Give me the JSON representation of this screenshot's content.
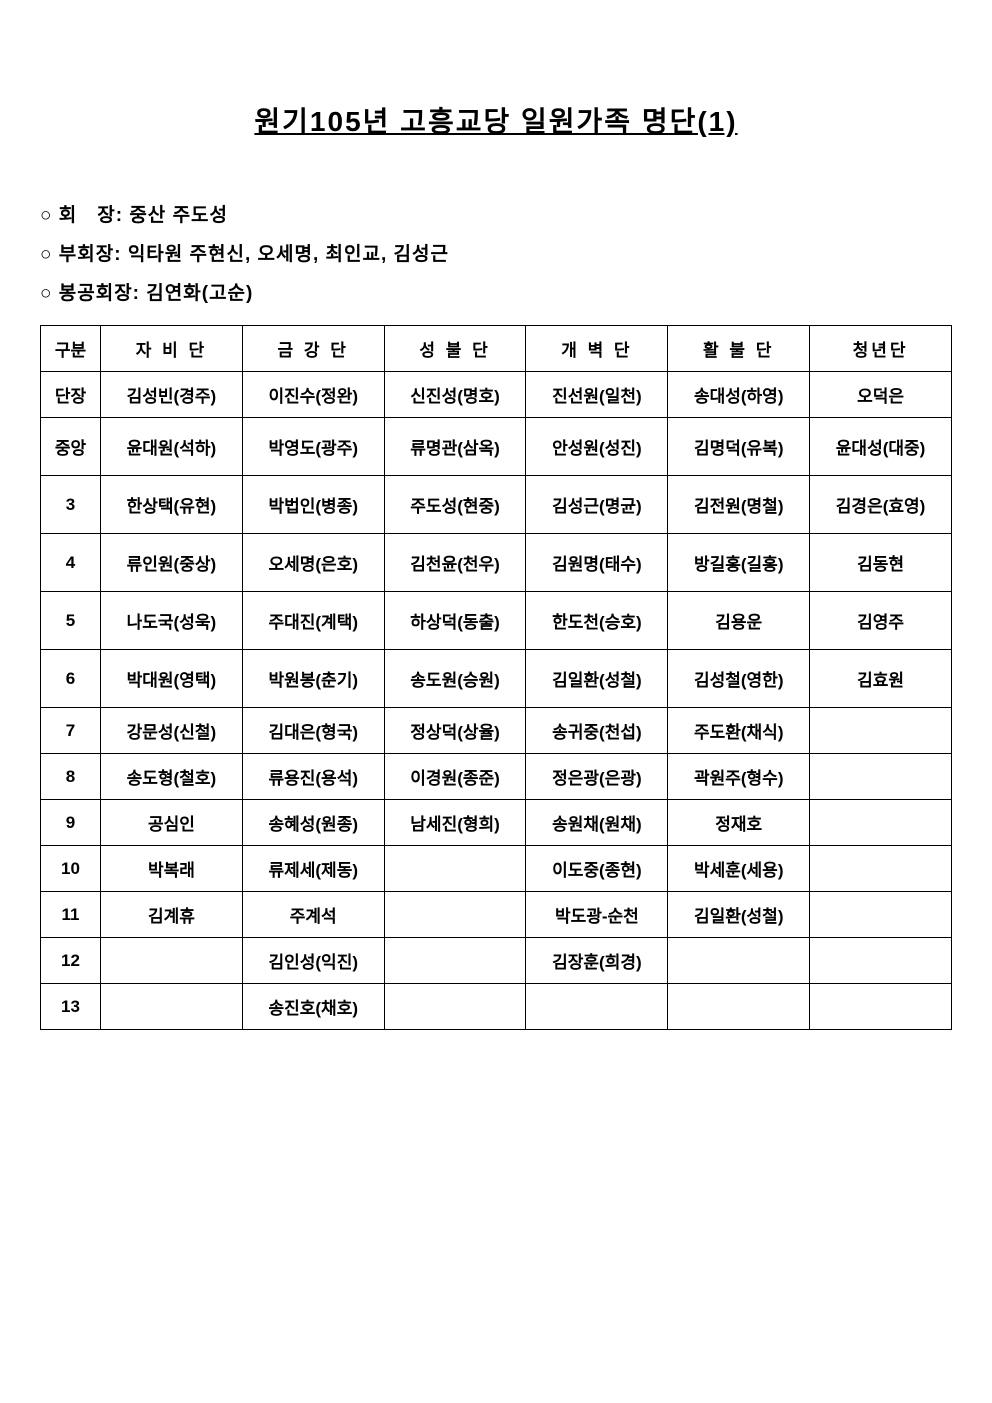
{
  "title": "원기105년 고흥교당 일원가족 명단(1)",
  "info": {
    "chairman": {
      "label": "○ 회　장:",
      "value": "중산 주도성"
    },
    "vice_chairman": {
      "label": "○ 부회장:",
      "value": "익타원 주현신,  오세명,  최인교,  김성근"
    },
    "bonggong_chairman": {
      "label": "○ 봉공회장:",
      "value": "김연화(고순)"
    }
  },
  "table": {
    "columns": [
      "구분",
      "자 비 단",
      "금 강 단",
      "성 불 단",
      "개 벽 단",
      "활 불 단",
      "청년단"
    ],
    "column_classes": [
      "col-gubun",
      "col-data",
      "col-data",
      "col-data",
      "col-data",
      "col-data",
      "col-data"
    ],
    "rows": [
      {
        "label": "단장",
        "tall": false,
        "cells": [
          "김성빈(경주)",
          "이진수(정완)",
          "신진성(명호)",
          "진선원(일천)",
          "송대성(하영)",
          "오덕은"
        ]
      },
      {
        "label": "중앙",
        "tall": true,
        "cells": [
          "윤대원(석하)",
          "박영도(광주)",
          "류명관(삼옥)",
          "안성원(성진)",
          "김명덕(유복)",
          "윤대성(대중)"
        ]
      },
      {
        "label": "3",
        "tall": true,
        "cells": [
          "한상택(유현)",
          "박법인(병종)",
          "주도성(현중)",
          "김성근(명균)",
          "김전원(명철)",
          "김경은(효영)"
        ]
      },
      {
        "label": "4",
        "tall": true,
        "cells": [
          "류인원(중상)",
          "오세명(은호)",
          "김천윤(천우)",
          "김원명(태수)",
          "방길홍(길홍)",
          "김동현"
        ]
      },
      {
        "label": "5",
        "tall": true,
        "cells": [
          "나도국(성욱)",
          "주대진(계택)",
          "하상덕(동출)",
          "한도천(승호)",
          "김용운",
          "김영주"
        ]
      },
      {
        "label": "6",
        "tall": true,
        "cells": [
          "박대원(영택)",
          "박원봉(춘기)",
          "송도원(승원)",
          "김일환(성철)",
          "김성철(영한)",
          "김효원"
        ]
      },
      {
        "label": "7",
        "tall": false,
        "cells": [
          "강문성(신철)",
          "김대은(형국)",
          "정상덕(상율)",
          "송귀중(천섭)",
          "주도환(채식)",
          ""
        ]
      },
      {
        "label": "8",
        "tall": false,
        "cells": [
          "송도형(철호)",
          "류용진(용석)",
          "이경원(종준)",
          "정은광(은광)",
          "곽원주(형수)",
          ""
        ]
      },
      {
        "label": "9",
        "tall": false,
        "cells": [
          "공심인",
          "송혜성(원종)",
          "남세진(형희)",
          "송원채(원채)",
          "정재호",
          ""
        ]
      },
      {
        "label": "10",
        "tall": false,
        "cells": [
          "박복래",
          "류제세(제동)",
          "",
          "이도중(종현)",
          "박세훈(세용)",
          ""
        ]
      },
      {
        "label": "11",
        "tall": false,
        "cells": [
          "김계휴",
          "주계석",
          "",
          "박도광-순천",
          "김일환(성철)",
          ""
        ]
      },
      {
        "label": "12",
        "tall": false,
        "cells": [
          "",
          "김인성(익진)",
          "",
          "김장훈(희경)",
          "",
          ""
        ]
      },
      {
        "label": "13",
        "tall": false,
        "cells": [
          "",
          "송진호(채호)",
          "",
          "",
          "",
          ""
        ]
      }
    ]
  }
}
